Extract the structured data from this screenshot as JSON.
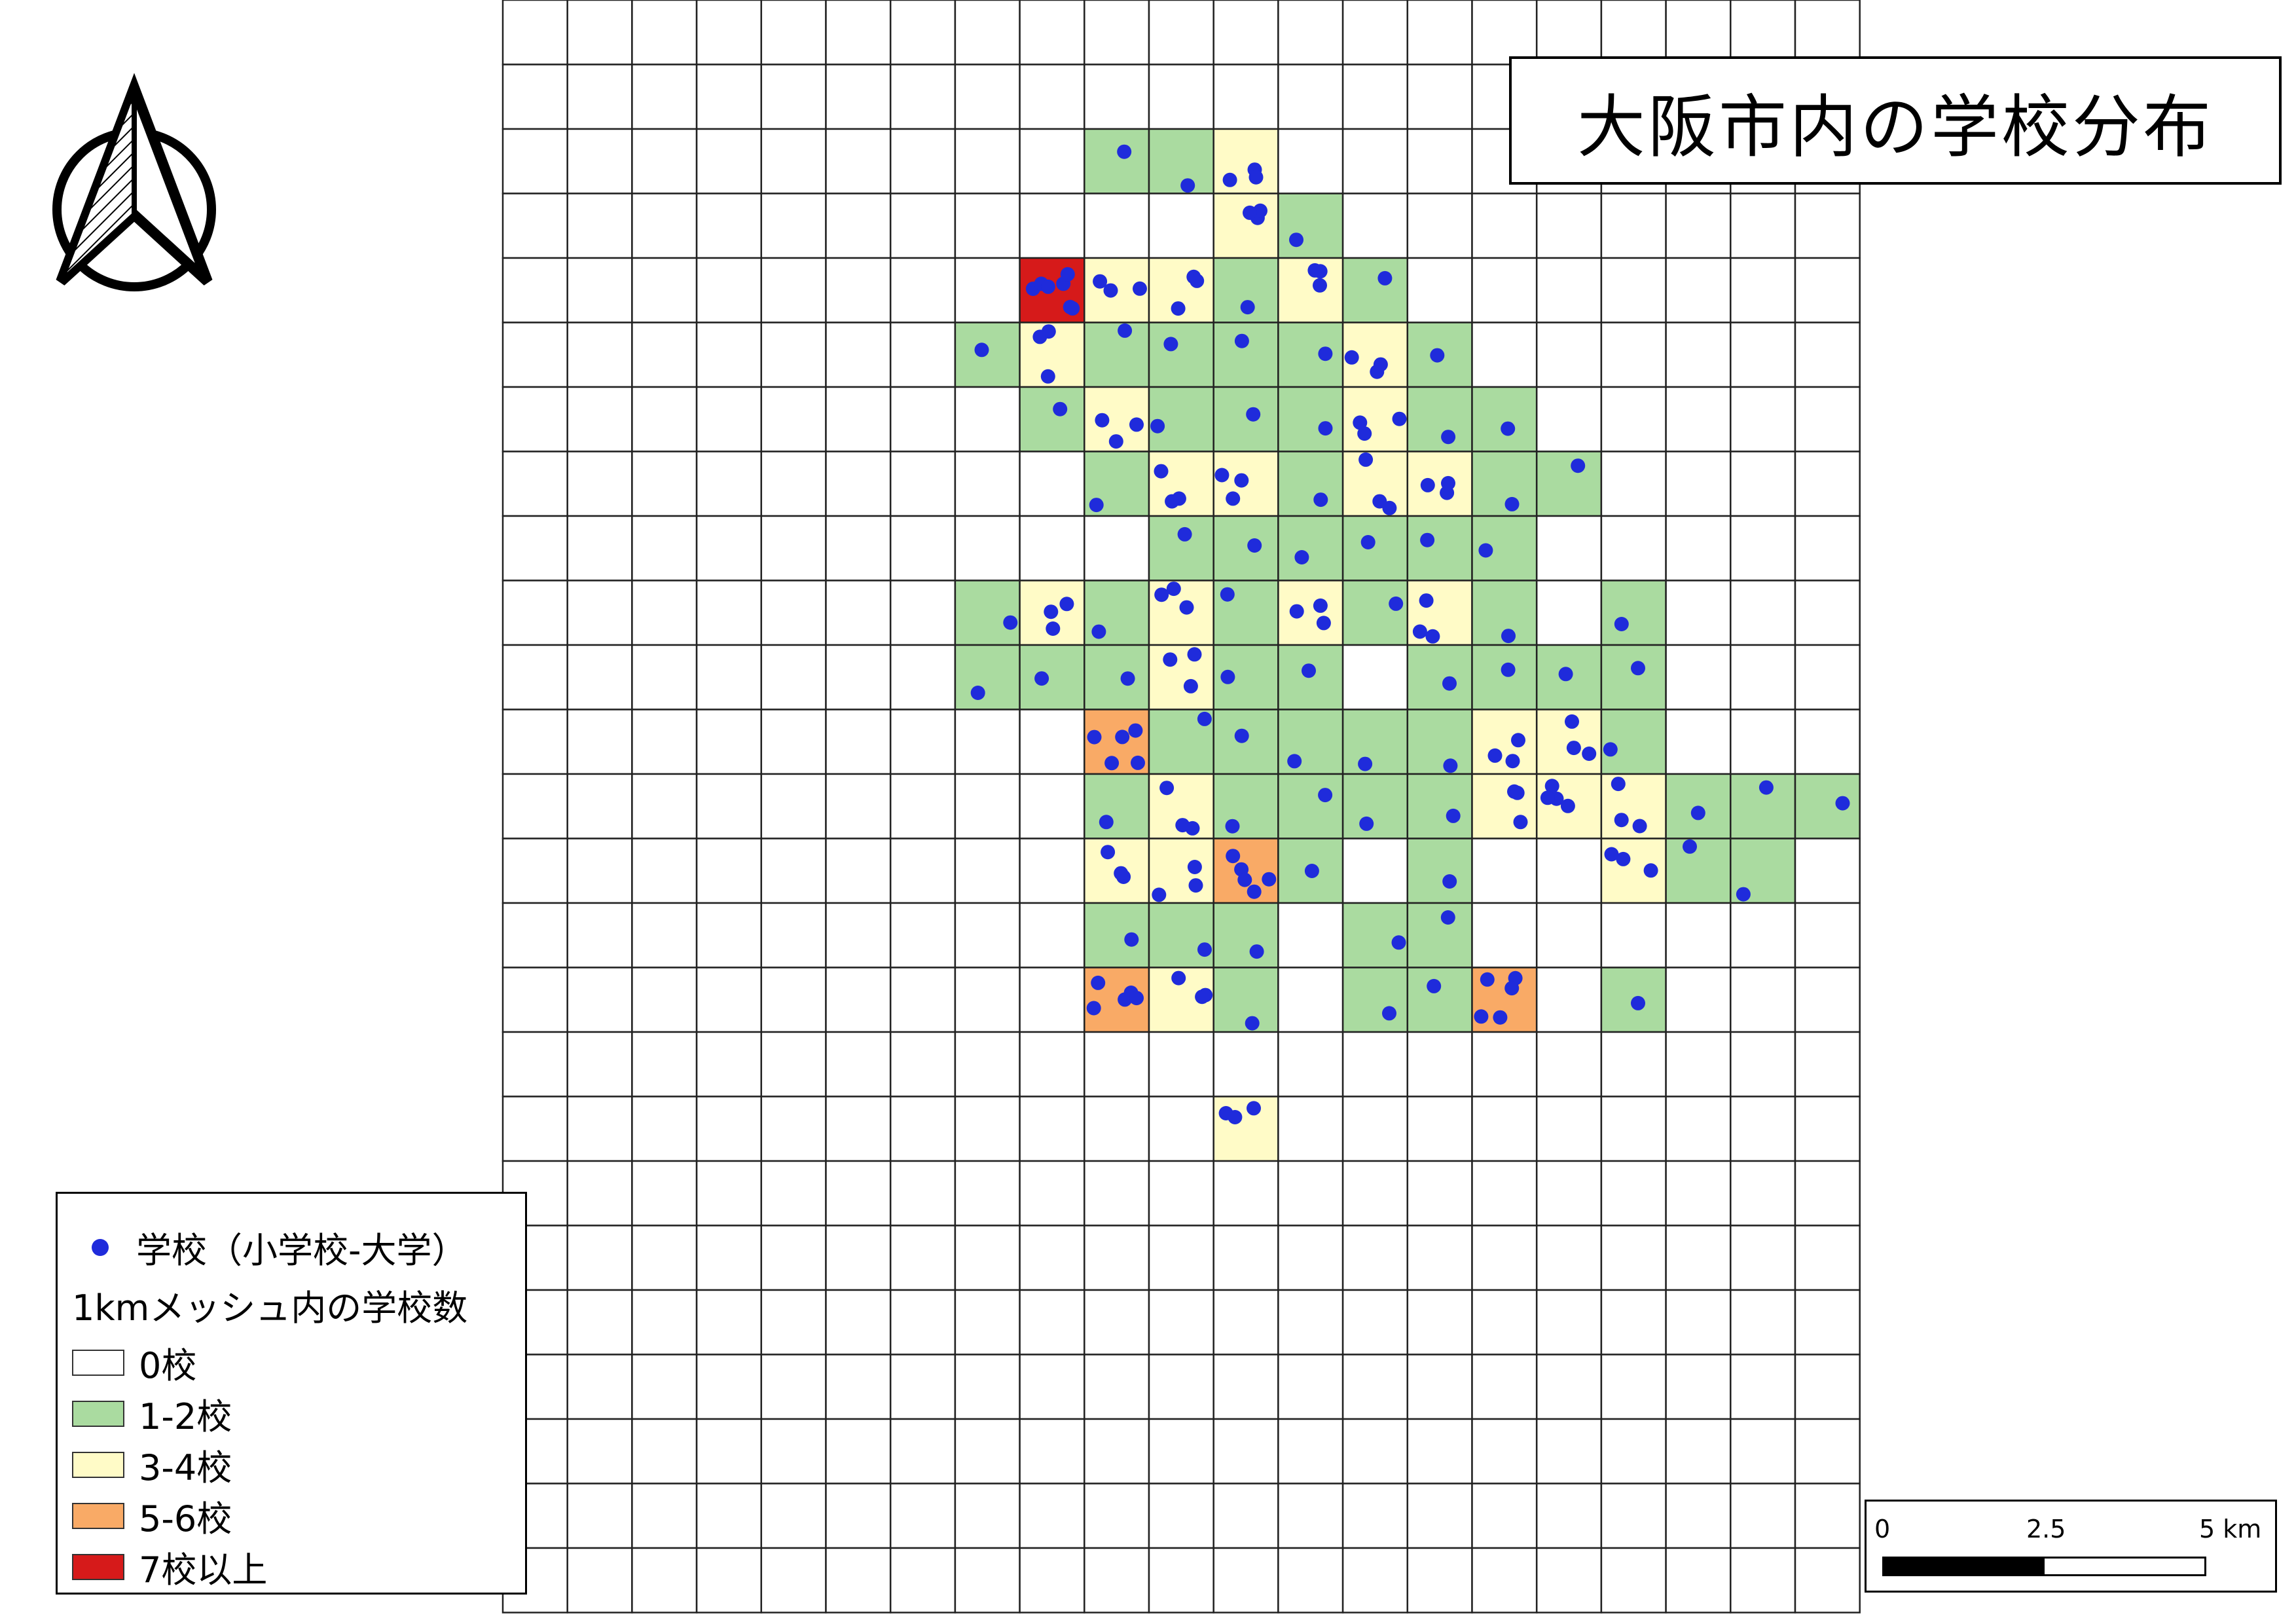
{
  "title": "大阪市内の学校分布",
  "legend": {
    "school_label": "学校（小学校-大学）",
    "mesh_heading": "1kmメッシュ内の学校数",
    "classes": [
      {
        "label": "0校",
        "color": "#ffffff"
      },
      {
        "label": "1-2校",
        "color": "#aadba0"
      },
      {
        "label": "3-4校",
        "color": "#fffbc7"
      },
      {
        "label": "5-6校",
        "color": "#f9aa66"
      },
      {
        "label": "7校以上",
        "color": "#d61a1a"
      }
    ],
    "point_color": "#1f2bdb"
  },
  "scale_bar": {
    "labels": [
      "0",
      "2.5",
      "5 km"
    ]
  },
  "north_arrow": {
    "icon": "north-arrow-icon"
  },
  "mesh_counts": [
    "000000000000000000000",
    "000000000000000000000",
    "000000000113000000000",
    "000000000003100000000",
    "000000007331310000000",
    "000000013111131000000",
    "000000001311131100000",
    "000000000133133110000",
    "000000000011111100000",
    "000000013131313101000",
    "000000011131101111000",
    "000000000511111331000",
    "000000000131111343111",
    "000000000335101003110",
    "000000000111011000000",
    "000000000531011501000",
    "000000000000000000000",
    "000000000003000000000",
    "000000000000000000000",
    "000000000000000000000",
    "000000000000000000000",
    "000000000000000000000",
    "000000000000000000000",
    "000000000000000000000",
    "000000000000000000000"
  ]
}
